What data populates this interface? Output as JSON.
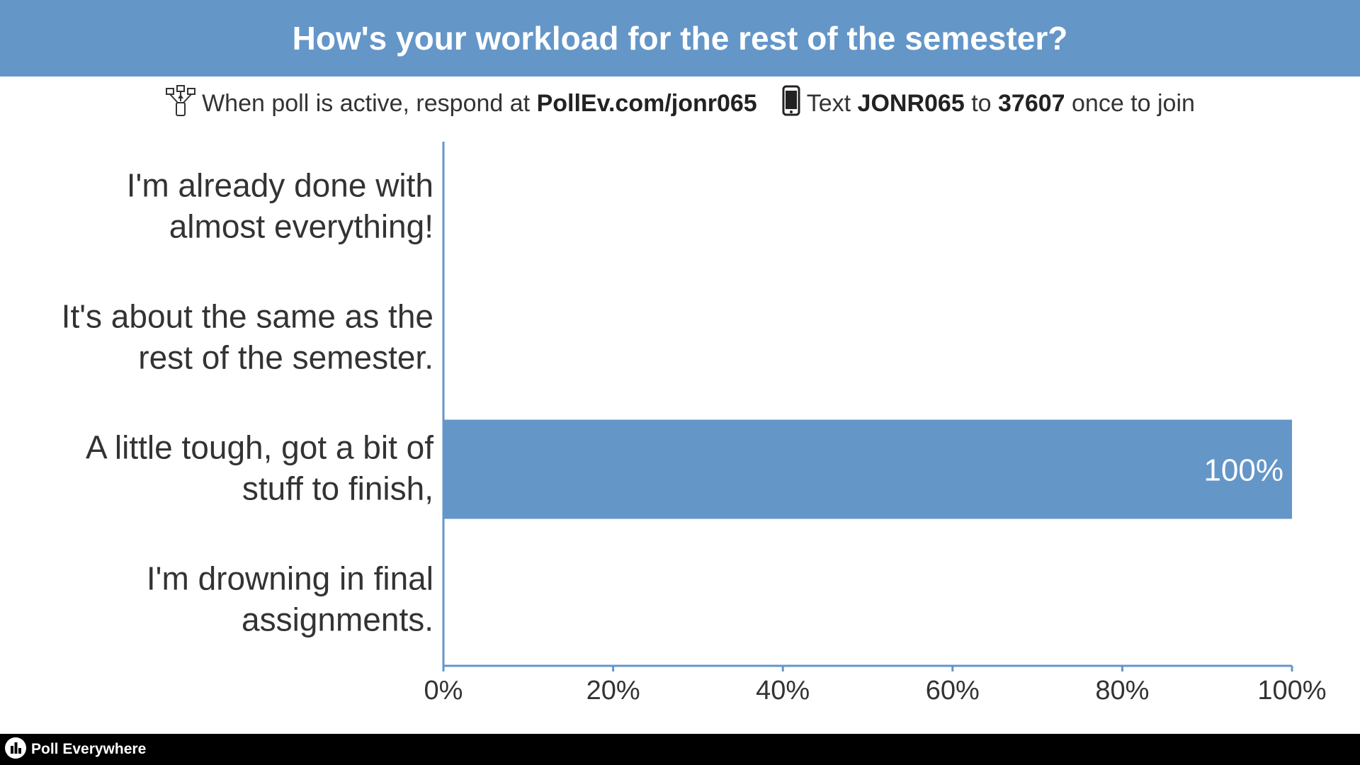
{
  "header": {
    "title": "How's your workload for the rest of the semester?"
  },
  "instructions": {
    "web_prefix": "When poll is active, respond at",
    "web_url": "PollEv.com/jonr065",
    "text_prefix": "Text",
    "text_code": "JONR065",
    "text_to": "to",
    "text_number": "37607",
    "text_suffix": "once to join",
    "web_icon": "poll-network-icon",
    "phone_icon": "phone-icon"
  },
  "footer": {
    "brand": "Poll Everywhere",
    "logo_icon": "poll-everywhere-logo-icon"
  },
  "colors": {
    "accent": "#6496c8",
    "text": "#333333",
    "footer_bg": "#000000"
  },
  "chart_data": {
    "type": "bar",
    "orientation": "horizontal",
    "categories": [
      [
        "I'm already done with",
        "almost everything!"
      ],
      [
        "It's about the same as the",
        "rest of the semester."
      ],
      [
        "A little tough, got a bit of",
        "stuff to finish,"
      ],
      [
        "I'm drowning in final",
        "assignments."
      ]
    ],
    "values": [
      0,
      0,
      100,
      0
    ],
    "value_labels": [
      "",
      "",
      "100%",
      ""
    ],
    "xlim": [
      0,
      100
    ],
    "xticks": [
      "0%",
      "20%",
      "40%",
      "60%",
      "80%",
      "100%"
    ],
    "grid": false,
    "bar_color": "#6496c8"
  }
}
